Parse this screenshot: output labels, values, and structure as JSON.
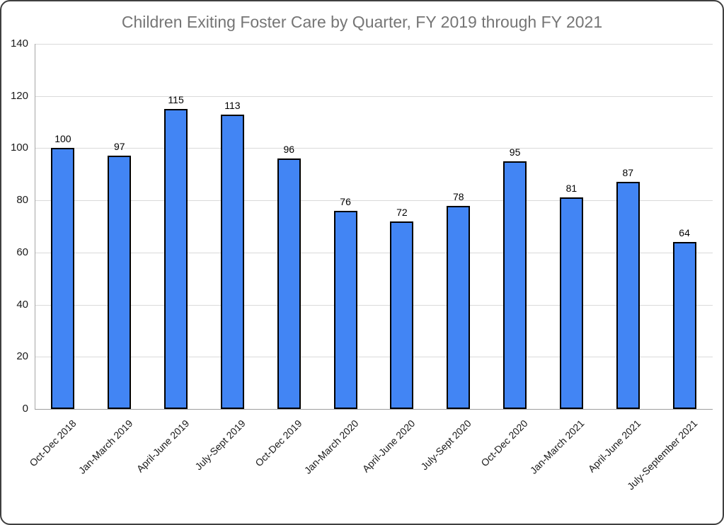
{
  "window": {
    "background": "#ffffff",
    "border_color": "#3f3f3f"
  },
  "chart_data": {
    "type": "bar",
    "title": "Children Exiting Foster Care by Quarter, FY 2019 through FY 2021",
    "categories": [
      "Oct-Dec 2018",
      "Jan-March 2019",
      "April-June 2019",
      "July-Sept 2019",
      "Oct-Dec 2019",
      "Jan-March 2020",
      "April-June 2020",
      "July-Sept 2020",
      "Oct-Dec 2020",
      "Jan-March 2021",
      "April-June 2021",
      "July-September 2021"
    ],
    "values": [
      100,
      97,
      115,
      113,
      96,
      76,
      72,
      78,
      95,
      81,
      87,
      64
    ],
    "data_labels": [
      100,
      97,
      115,
      113,
      96,
      76,
      72,
      78,
      95,
      81,
      87,
      64
    ],
    "xlabel": "",
    "ylabel": "",
    "ylim": [
      0,
      140
    ],
    "yticks": [
      0,
      20,
      40,
      60,
      80,
      100,
      120,
      140
    ],
    "legend_position": "none",
    "grid": "horizontal",
    "colors": {
      "bar_fill": "#4285f4",
      "bar_border": "#000000",
      "gridline": "#dadada",
      "baseline": "#9e9e9e",
      "axis_line": "#a6a6a6",
      "title_text": "#757575",
      "tick_text": "#1a1a1a",
      "value_text": "#000000"
    }
  }
}
